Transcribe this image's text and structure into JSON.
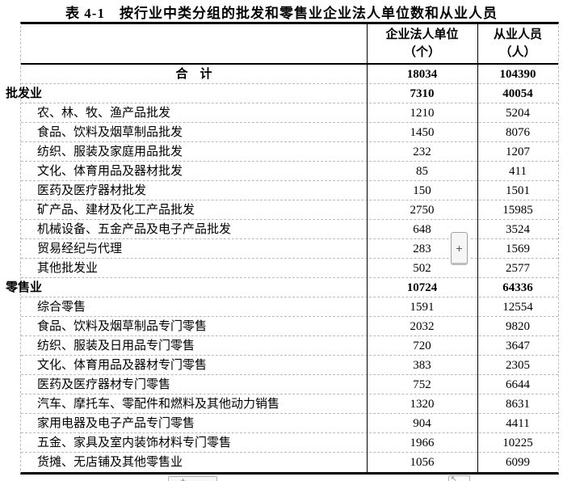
{
  "title": "表 4-1　按行业中类分组的批发和零售业企业法人单位数和从业人员",
  "table": {
    "columns": [
      {
        "name": "企业法人单位",
        "lines": [
          "企业法人单位",
          "（个）"
        ]
      },
      {
        "name": "从业人员",
        "lines": [
          "从业人员",
          "（人）"
        ]
      }
    ],
    "rows": [
      {
        "label": "合　计",
        "units": "18034",
        "persons": "104390",
        "style": "total"
      },
      {
        "label": "批发业",
        "units": "7310",
        "persons": "40054",
        "style": "section"
      },
      {
        "label": "农、林、牧、渔产品批发",
        "units": "1210",
        "persons": "5204",
        "style": "sub"
      },
      {
        "label": "食品、饮料及烟草制品批发",
        "units": "1450",
        "persons": "8076",
        "style": "sub"
      },
      {
        "label": "纺织、服装及家庭用品批发",
        "units": "232",
        "persons": "1207",
        "style": "sub"
      },
      {
        "label": "文化、体育用品及器材批发",
        "units": "85",
        "persons": "411",
        "style": "sub"
      },
      {
        "label": "医药及医疗器材批发",
        "units": "150",
        "persons": "1501",
        "style": "sub"
      },
      {
        "label": "矿产品、建材及化工产品批发",
        "units": "2750",
        "persons": "15985",
        "style": "sub"
      },
      {
        "label": "机械设备、五金产品及电子产品批发",
        "units": "648",
        "persons": "3524",
        "style": "sub"
      },
      {
        "label": "贸易经纪与代理",
        "units": "283",
        "persons": "1569",
        "style": "sub"
      },
      {
        "label": "其他批发业",
        "units": "502",
        "persons": "2577",
        "style": "sub"
      },
      {
        "label": "零售业",
        "units": "10724",
        "persons": "64336",
        "style": "section"
      },
      {
        "label": "综合零售",
        "units": "1591",
        "persons": "12554",
        "style": "sub"
      },
      {
        "label": "食品、饮料及烟草制品专门零售",
        "units": "2032",
        "persons": "9820",
        "style": "sub"
      },
      {
        "label": "纺织、服装及日用品专门零售",
        "units": "720",
        "persons": "3647",
        "style": "sub"
      },
      {
        "label": "文化、体育用品及器材专门零售",
        "units": "383",
        "persons": "2305",
        "style": "sub"
      },
      {
        "label": "医药及医疗器材专门零售",
        "units": "752",
        "persons": "6644",
        "style": "sub"
      },
      {
        "label": "汽车、摩托车、零配件和燃料及其他动力销售",
        "units": "1320",
        "persons": "8631",
        "style": "sub"
      },
      {
        "label": "家用电器及电子产品专门零售",
        "units": "904",
        "persons": "4411",
        "style": "sub"
      },
      {
        "label": "五金、家具及室内装饰材料专门零售",
        "units": "1966",
        "persons": "10225",
        "style": "sub"
      },
      {
        "label": "货摊、无店铺及其他零售业",
        "units": "1056",
        "persons": "6099",
        "style": "sub"
      }
    ]
  },
  "widgets": {
    "plus_button": "+",
    "bottom_plus_button": "+",
    "cursor_button": "↖"
  }
}
